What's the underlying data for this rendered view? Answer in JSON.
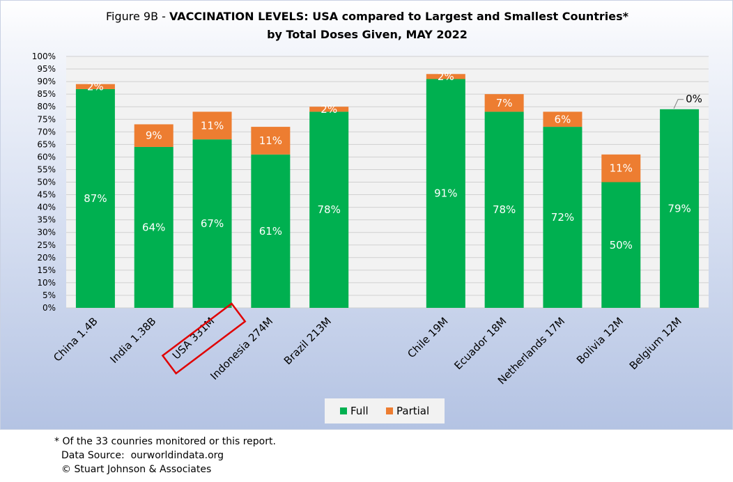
{
  "title": {
    "prefix": "Figure 9B - ",
    "bold": "VACCINATION LEVELS:  USA compared to Largest and Smallest Countries*",
    "line2": "by Total Doses Given, MAY 2022"
  },
  "chart_data": {
    "type": "bar",
    "stacked": true,
    "categories": [
      "China 1.4B",
      "India 1.38B",
      "USA 331M",
      "Indonesia 274M",
      "Brazil 213M",
      "",
      "Chile 19M",
      "Ecuador 18M",
      "Netherlands 17M",
      "Bolivia 12M",
      "Belgium 12M"
    ],
    "series": [
      {
        "name": "Full",
        "color": "#00b050",
        "values": [
          87,
          64,
          67,
          61,
          78,
          null,
          91,
          78,
          72,
          50,
          79
        ],
        "labels": [
          "87%",
          "64%",
          "67%",
          "61%",
          "78%",
          "",
          "91%",
          "78%",
          "72%",
          "50%",
          "79%"
        ]
      },
      {
        "name": "Partial",
        "color": "#ed7d31",
        "values": [
          2,
          9,
          11,
          11,
          2,
          null,
          2,
          7,
          6,
          11,
          0
        ],
        "labels": [
          "2%",
          "9%",
          "11%",
          "11%",
          "2%",
          "",
          "2%",
          "7%",
          "6%",
          "11%",
          "0%"
        ]
      }
    ],
    "ylim": [
      0,
      100
    ],
    "yticks": [
      0,
      5,
      10,
      15,
      20,
      25,
      30,
      35,
      40,
      45,
      50,
      55,
      60,
      65,
      70,
      75,
      80,
      85,
      90,
      95,
      100
    ],
    "ytick_labels": [
      "0%",
      "5%",
      "10%",
      "15%",
      "20%",
      "25%",
      "30%",
      "35%",
      "40%",
      "45%",
      "50%",
      "55%",
      "60%",
      "65%",
      "70%",
      "75%",
      "80%",
      "85%",
      "90%",
      "95%",
      "100%"
    ],
    "grid": true,
    "legend": [
      "Full",
      "Partial"
    ],
    "legend_position": "bottom",
    "highlighted_category": "USA 331M",
    "highlight_color": "#e00000"
  },
  "footnotes": {
    "note": "* Of the 33 counries monitored or this report.",
    "source": "Data Source:  ourworldindata.org",
    "copyright": "© Stuart Johnson & Associates"
  }
}
